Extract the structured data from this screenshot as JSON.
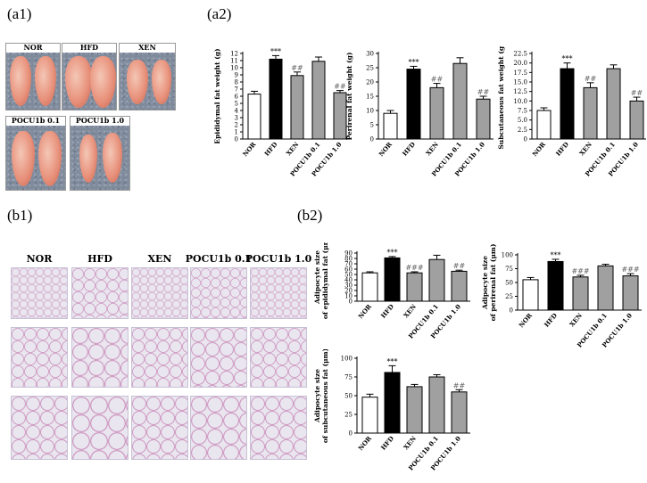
{
  "panels": {
    "a1": "(a1)",
    "a2": "(a2)",
    "b1": "(b1)",
    "b2": "(b2)"
  },
  "photos": [
    "NOR",
    "HFD",
    "XEN",
    "POCU1b 0.1",
    "POCU1b 1.0"
  ],
  "histology_columns": [
    "NOR",
    "HFD",
    "XEN",
    "POCU1b 0.1",
    "POCU1b 1.0"
  ],
  "colors": {
    "black": "#000000",
    "white": "#ffffff",
    "grey": "#a0a0a0"
  },
  "chart_data": [
    {
      "id": "epididymal",
      "type": "bar",
      "ylabel": "Epididymal fat weight (g)",
      "categories": [
        "NOR",
        "HFD",
        "XEN",
        "POCU1b 0.1",
        "POCU1b 1.0"
      ],
      "values": [
        6.3,
        11.2,
        8.9,
        10.9,
        6.5
      ],
      "errors": [
        0.4,
        0.5,
        0.5,
        0.6,
        0.3
      ],
      "annotations": [
        "",
        "***",
        "##",
        "",
        "##"
      ],
      "ylim": [
        0,
        12
      ],
      "yticks": [
        "0",
        "1",
        "2",
        "3",
        "4",
        "5",
        "6",
        "7",
        "8",
        "9",
        "10",
        "11",
        "12"
      ]
    },
    {
      "id": "perirenal",
      "type": "bar",
      "ylabel": "Perirenal fat weight (g)",
      "categories": [
        "NOR",
        "HFD",
        "XEN",
        "POCU1b 0.1",
        "POCU1b 1.0"
      ],
      "values": [
        9,
        24.5,
        18,
        26.5,
        14
      ],
      "errors": [
        1,
        1,
        1.5,
        2,
        1
      ],
      "annotations": [
        "",
        "***",
        "##",
        "",
        "##"
      ],
      "ylim": [
        0,
        30
      ],
      "yticks": [
        "0",
        "5",
        "10",
        "15",
        "20",
        "25",
        "30"
      ]
    },
    {
      "id": "subcutaneous",
      "type": "bar",
      "ylabel": "Subcutaneous fat weight (g)",
      "categories": [
        "NOR",
        "HFD",
        "XEN",
        "POCU1b 0.1",
        "POCU1b 1.0"
      ],
      "values": [
        7.5,
        18.5,
        13.5,
        18.5,
        10
      ],
      "errors": [
        0.7,
        1.5,
        1.3,
        1,
        1
      ],
      "annotations": [
        "",
        "***",
        "##",
        "",
        "##"
      ],
      "ylim": [
        0,
        22.5
      ],
      "yticks": [
        "0",
        "2.5",
        "5.0",
        "7.5",
        "10.0",
        "12.5",
        "15.0",
        "17.5",
        "20.0",
        "22.5"
      ]
    },
    {
      "id": "size_epididymal",
      "type": "bar",
      "ylabel": "Adipocyte size\nof epididymal fat (μm)",
      "categories": [
        "NOR",
        "HFD",
        "XEN",
        "POCU1b 0.1",
        "POCU1b 1.0"
      ],
      "values": [
        53,
        81,
        53,
        78,
        56
      ],
      "errors": [
        2,
        2.5,
        2,
        8,
        2
      ],
      "annotations": [
        "",
        "***",
        "###",
        "",
        "##"
      ],
      "ylim": [
        0,
        90
      ],
      "yticks": [
        "0",
        "10",
        "20",
        "30",
        "40",
        "50",
        "60",
        "70",
        "80",
        "90"
      ]
    },
    {
      "id": "size_perirenal",
      "type": "bar",
      "ylabel": "Adipocyte size\nof perirenal fat (μm)",
      "categories": [
        "NOR",
        "HFD",
        "XEN",
        "POCU1b 0.1",
        "POCU1b 1.0"
      ],
      "values": [
        55,
        88,
        60,
        80,
        62
      ],
      "errors": [
        4,
        4,
        3,
        3,
        4
      ],
      "annotations": [
        "",
        "***",
        "###",
        "",
        "###"
      ],
      "ylim": [
        0,
        100
      ],
      "yticks": [
        "0",
        "25",
        "50",
        "75",
        "100"
      ]
    },
    {
      "id": "size_subcutaneous",
      "type": "bar",
      "ylabel": "Adipocyte size\nof subcutaneous fat (μm)",
      "categories": [
        "NOR",
        "HFD",
        "XEN",
        "POCU1b 0.1",
        "POCU1b 1.0"
      ],
      "values": [
        48,
        81,
        62,
        75,
        55
      ],
      "errors": [
        4,
        9,
        3,
        3,
        3
      ],
      "annotations": [
        "",
        "***",
        "",
        "",
        "##"
      ],
      "ylim": [
        0,
        100
      ],
      "yticks": [
        "0",
        "25",
        "50",
        "75",
        "100"
      ]
    }
  ]
}
